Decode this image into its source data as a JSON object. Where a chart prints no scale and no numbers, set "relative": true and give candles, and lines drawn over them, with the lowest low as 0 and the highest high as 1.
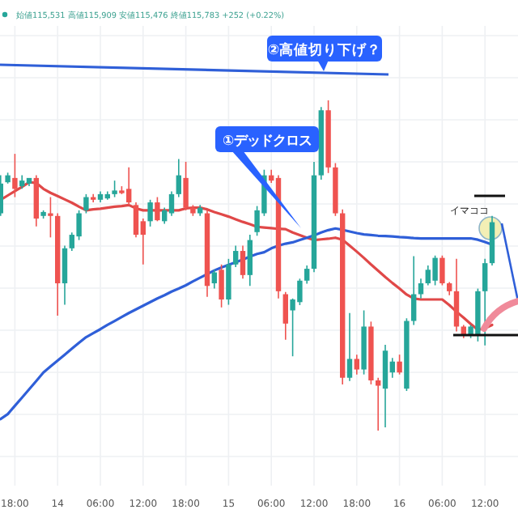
{
  "chart_data": {
    "type": "candlestick",
    "relative": true,
    "grid": true,
    "categories": [
      null,
      null,
      "18:00",
      null,
      null,
      null,
      null,
      null,
      "14",
      null,
      null,
      null,
      null,
      null,
      "06:00",
      null,
      null,
      null,
      null,
      null,
      "12:00",
      null,
      null,
      null,
      null,
      null,
      "18:00",
      null,
      null,
      null,
      null,
      null,
      "15",
      null,
      null,
      null,
      null,
      null,
      "06:00",
      null,
      null,
      null,
      null,
      null,
      "12:00",
      null,
      null,
      null,
      null,
      null,
      "18:00",
      null,
      null,
      null,
      null,
      null,
      "16",
      null,
      null,
      null,
      null,
      null,
      "06:00",
      null,
      null,
      null,
      null,
      null,
      "12:00",
      null
    ],
    "ohlc": [
      [
        0.658,
        0.773,
        0.65,
        0.748
      ],
      [
        0.752,
        0.781,
        0.748,
        0.773
      ],
      [
        0.765,
        0.838,
        0.707,
        0.732
      ],
      [
        0.74,
        0.773,
        0.732,
        0.757
      ],
      [
        0.748,
        0.765,
        0.74,
        0.765
      ],
      [
        0.765,
        0.773,
        0.618,
        0.642
      ],
      [
        0.65,
        0.667,
        0.642,
        0.662
      ],
      [
        0.658,
        0.707,
        0.585,
        0.65
      ],
      [
        0.65,
        0.658,
        0.348,
        0.446
      ],
      [
        0.446,
        0.56,
        0.381,
        0.552
      ],
      [
        0.552,
        0.6,
        0.544,
        0.593
      ],
      [
        0.588,
        0.667,
        0.577,
        0.658
      ],
      [
        0.667,
        0.716,
        0.658,
        0.707
      ],
      [
        0.707,
        0.716,
        0.691,
        0.699
      ],
      [
        0.699,
        0.724,
        0.691,
        0.716
      ],
      [
        0.703,
        0.724,
        0.699,
        0.716
      ],
      [
        0.716,
        0.757,
        0.707,
        0.727
      ],
      [
        0.727,
        0.74,
        0.716,
        0.719
      ],
      [
        0.732,
        0.797,
        0.683,
        0.691
      ],
      [
        0.683,
        0.691,
        0.585,
        0.593
      ],
      [
        0.634,
        0.642,
        0.503,
        0.593
      ],
      [
        0.634,
        0.699,
        0.618,
        0.691
      ],
      [
        0.691,
        0.707,
        0.634,
        0.637
      ],
      [
        0.634,
        0.675,
        0.626,
        0.667
      ],
      [
        0.658,
        0.724,
        0.65,
        0.716
      ],
      [
        0.716,
        0.822,
        0.707,
        0.773
      ],
      [
        0.765,
        0.814,
        0.667,
        0.675
      ],
      [
        0.675,
        0.683,
        0.65,
        0.658
      ],
      [
        0.658,
        0.683,
        0.65,
        0.675
      ],
      [
        0.658,
        0.667,
        0.405,
        0.438
      ],
      [
        0.446,
        0.487,
        0.43,
        0.479
      ],
      [
        0.487,
        0.503,
        0.373,
        0.397
      ],
      [
        0.397,
        0.52,
        0.381,
        0.503
      ],
      [
        0.503,
        0.56,
        0.495,
        0.544
      ],
      [
        0.544,
        0.56,
        0.46,
        0.471
      ],
      [
        0.471,
        0.593,
        0.438,
        0.577
      ],
      [
        0.601,
        0.68,
        0.59,
        0.667
      ],
      [
        0.658,
        0.79,
        0.65,
        0.773
      ],
      [
        0.773,
        0.79,
        0.75,
        0.757
      ],
      [
        0.765,
        0.773,
        0.4,
        0.422
      ],
      [
        0.413,
        0.42,
        0.275,
        0.324
      ],
      [
        0.364,
        0.4,
        0.225,
        0.397
      ],
      [
        0.389,
        0.46,
        0.38,
        0.454
      ],
      [
        0.454,
        0.5,
        0.445,
        0.49
      ],
      [
        0.49,
        0.814,
        0.48,
        0.773
      ],
      [
        0.773,
        0.98,
        0.76,
        0.97
      ],
      [
        0.97,
        1,
        0.78,
        0.797
      ],
      [
        0.797,
        0.81,
        0.65,
        0.658
      ],
      [
        0.658,
        0.67,
        0.14,
        0.16
      ],
      [
        0.16,
        0.356,
        0.15,
        0.217
      ],
      [
        0.217,
        0.23,
        0.17,
        0.185
      ],
      [
        0.185,
        0.364,
        0.17,
        0.315
      ],
      [
        0.315,
        0.33,
        0.14,
        0.152
      ],
      [
        0.152,
        0.16,
        0,
        0.136
      ],
      [
        0.127,
        0.26,
        0.01,
        0.242
      ],
      [
        0.176,
        0.22,
        0.16,
        0.209
      ],
      [
        0.209,
        0.23,
        0.17,
        0.176
      ],
      [
        0.127,
        0.34,
        0.12,
        0.332
      ],
      [
        0.332,
        0.528,
        0.32,
        0.413
      ],
      [
        0.413,
        0.46,
        0.4,
        0.446
      ],
      [
        0.446,
        0.5,
        0.44,
        0.487
      ],
      [
        0.454,
        0.53,
        0.44,
        0.523
      ],
      [
        0.523,
        0.53,
        0.44,
        0.446
      ],
      [
        0.446,
        0.45,
        0.41,
        0.422
      ],
      [
        0.422,
        0.52,
        0.3,
        0.315
      ],
      [
        0.315,
        0.32,
        0.28,
        0.291
      ],
      [
        0.291,
        0.32,
        0.28,
        0.315
      ],
      [
        0.291,
        0.43,
        0.27,
        0.422
      ],
      [
        0.422,
        0.52,
        0.258,
        0.507
      ],
      [
        0.507,
        0.65,
        0.5,
        0.631
      ]
    ],
    "series": [
      {
        "type": "line",
        "color": "#e04848",
        "values": [
          0.699,
          0.712,
          0.725,
          0.738,
          0.752,
          0.75,
          0.732,
          0.72,
          0.71,
          0.7,
          0.69,
          0.678,
          0.667,
          0.67,
          0.672,
          0.675,
          0.678,
          0.68,
          0.683,
          0.673,
          0.667,
          0.667,
          0.667,
          0.667,
          0.667,
          0.667,
          0.673,
          0.675,
          0.675,
          0.67,
          0.662,
          0.655,
          0.648,
          0.64,
          0.632,
          0.625,
          0.617,
          0.615,
          0.613,
          0.611,
          0.61,
          0.6,
          0.592,
          0.584,
          0.577,
          0.579,
          0.581,
          0.584,
          0.578,
          0.56,
          0.542,
          0.523,
          0.503,
          0.484,
          0.465,
          0.447,
          0.43,
          0.412,
          0.4,
          0.397,
          0.397,
          0.397,
          0.397,
          0.38,
          0.36,
          0.342,
          0.323,
          0.305,
          0.31,
          0.32
        ]
      },
      {
        "type": "line",
        "color": "#2f5fd8",
        "values": [
          0.035,
          0.05,
          0.075,
          0.1,
          0.125,
          0.15,
          0.176,
          0.194,
          0.212,
          0.23,
          0.248,
          0.266,
          0.283,
          0.295,
          0.307,
          0.32,
          0.332,
          0.344,
          0.356,
          0.367,
          0.378,
          0.389,
          0.4,
          0.41,
          0.421,
          0.43,
          0.44,
          0.452,
          0.463,
          0.474,
          0.485,
          0.494,
          0.502,
          0.51,
          0.518,
          0.527,
          0.535,
          0.54,
          0.552,
          0.56,
          0.566,
          0.57,
          0.577,
          0.584,
          0.591,
          0.6,
          0.607,
          0.612,
          0.608,
          0.603,
          0.598,
          0.594,
          0.592,
          0.59,
          0.589,
          0.588,
          0.586,
          0.585,
          0.583,
          0.582,
          0.582,
          0.582,
          0.582,
          0.582,
          0.582,
          0.582,
          0.582,
          0.578,
          0.571,
          0.563
        ]
      }
    ],
    "annotations": [
      "始値115,531 高値115,909 安値115,476 終値115,783 +252 (+0.22%)",
      "②高値切り下げ？",
      "①デッドクロス",
      "イマココ"
    ]
  }
}
